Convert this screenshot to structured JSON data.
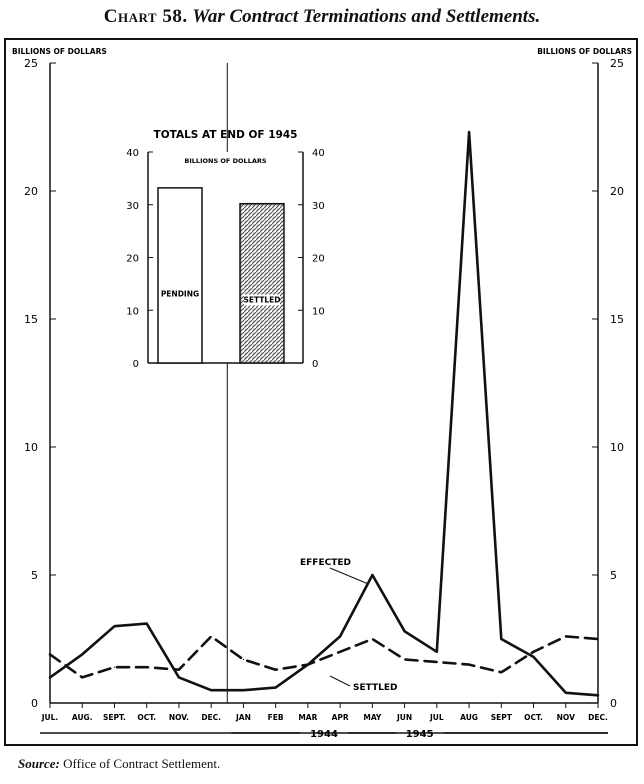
{
  "title": {
    "number": "Chart 58.",
    "text": "War Contract Terminations and Settlements."
  },
  "source": {
    "label": "Source:",
    "text": "Office of Contract Settlement."
  },
  "chart_data": [
    {
      "type": "line",
      "unit_label_left": "BILLIONS OF DOLLARS",
      "unit_label_right": "BILLIONS OF DOLLARS",
      "yticks": [
        "0",
        "5",
        "10",
        "15",
        "20",
        "25"
      ],
      "ylim": [
        0,
        25
      ],
      "categories": [
        "JUL.",
        "AUG.",
        "SEPT.",
        "OCT.",
        "NOV.",
        "DEC.",
        "JAN",
        "FEB",
        "MAR",
        "APR",
        "MAY",
        "JUN",
        "JUL",
        "AUG",
        "SEPT",
        "OCT.",
        "NOV",
        "DEC."
      ],
      "year_labels": [
        {
          "label": "1944",
          "span": [
            "JUL.",
            "DEC."
          ]
        },
        {
          "label": "1945",
          "span": [
            "JAN",
            "DEC."
          ]
        }
      ],
      "series": [
        {
          "name": "EFFECTED",
          "style": "solid",
          "values": [
            1.0,
            1.9,
            3.0,
            3.1,
            1.0,
            0.5,
            0.5,
            0.6,
            1.5,
            2.6,
            5.0,
            2.8,
            2.0,
            22.3,
            2.5,
            1.8,
            0.4,
            0.3
          ]
        },
        {
          "name": "SETTLED",
          "style": "dashed",
          "values": [
            1.9,
            1.0,
            1.4,
            1.4,
            1.3,
            2.6,
            1.7,
            1.3,
            1.5,
            2.0,
            2.5,
            1.7,
            1.6,
            1.5,
            1.2,
            2.0,
            2.6,
            2.5
          ]
        }
      ],
      "annotations": [
        "EFFECTED",
        "SETTLED"
      ],
      "grid": false
    },
    {
      "type": "bar",
      "title": "TOTALS AT END OF 1945",
      "unit_label": "BILLIONS OF DOLLARS",
      "yticks": [
        "0",
        "10",
        "20",
        "30",
        "40"
      ],
      "ylim": [
        0,
        40
      ],
      "categories": [
        "PENDING",
        "SETTLED"
      ],
      "values": [
        33.2,
        30.2
      ]
    }
  ]
}
